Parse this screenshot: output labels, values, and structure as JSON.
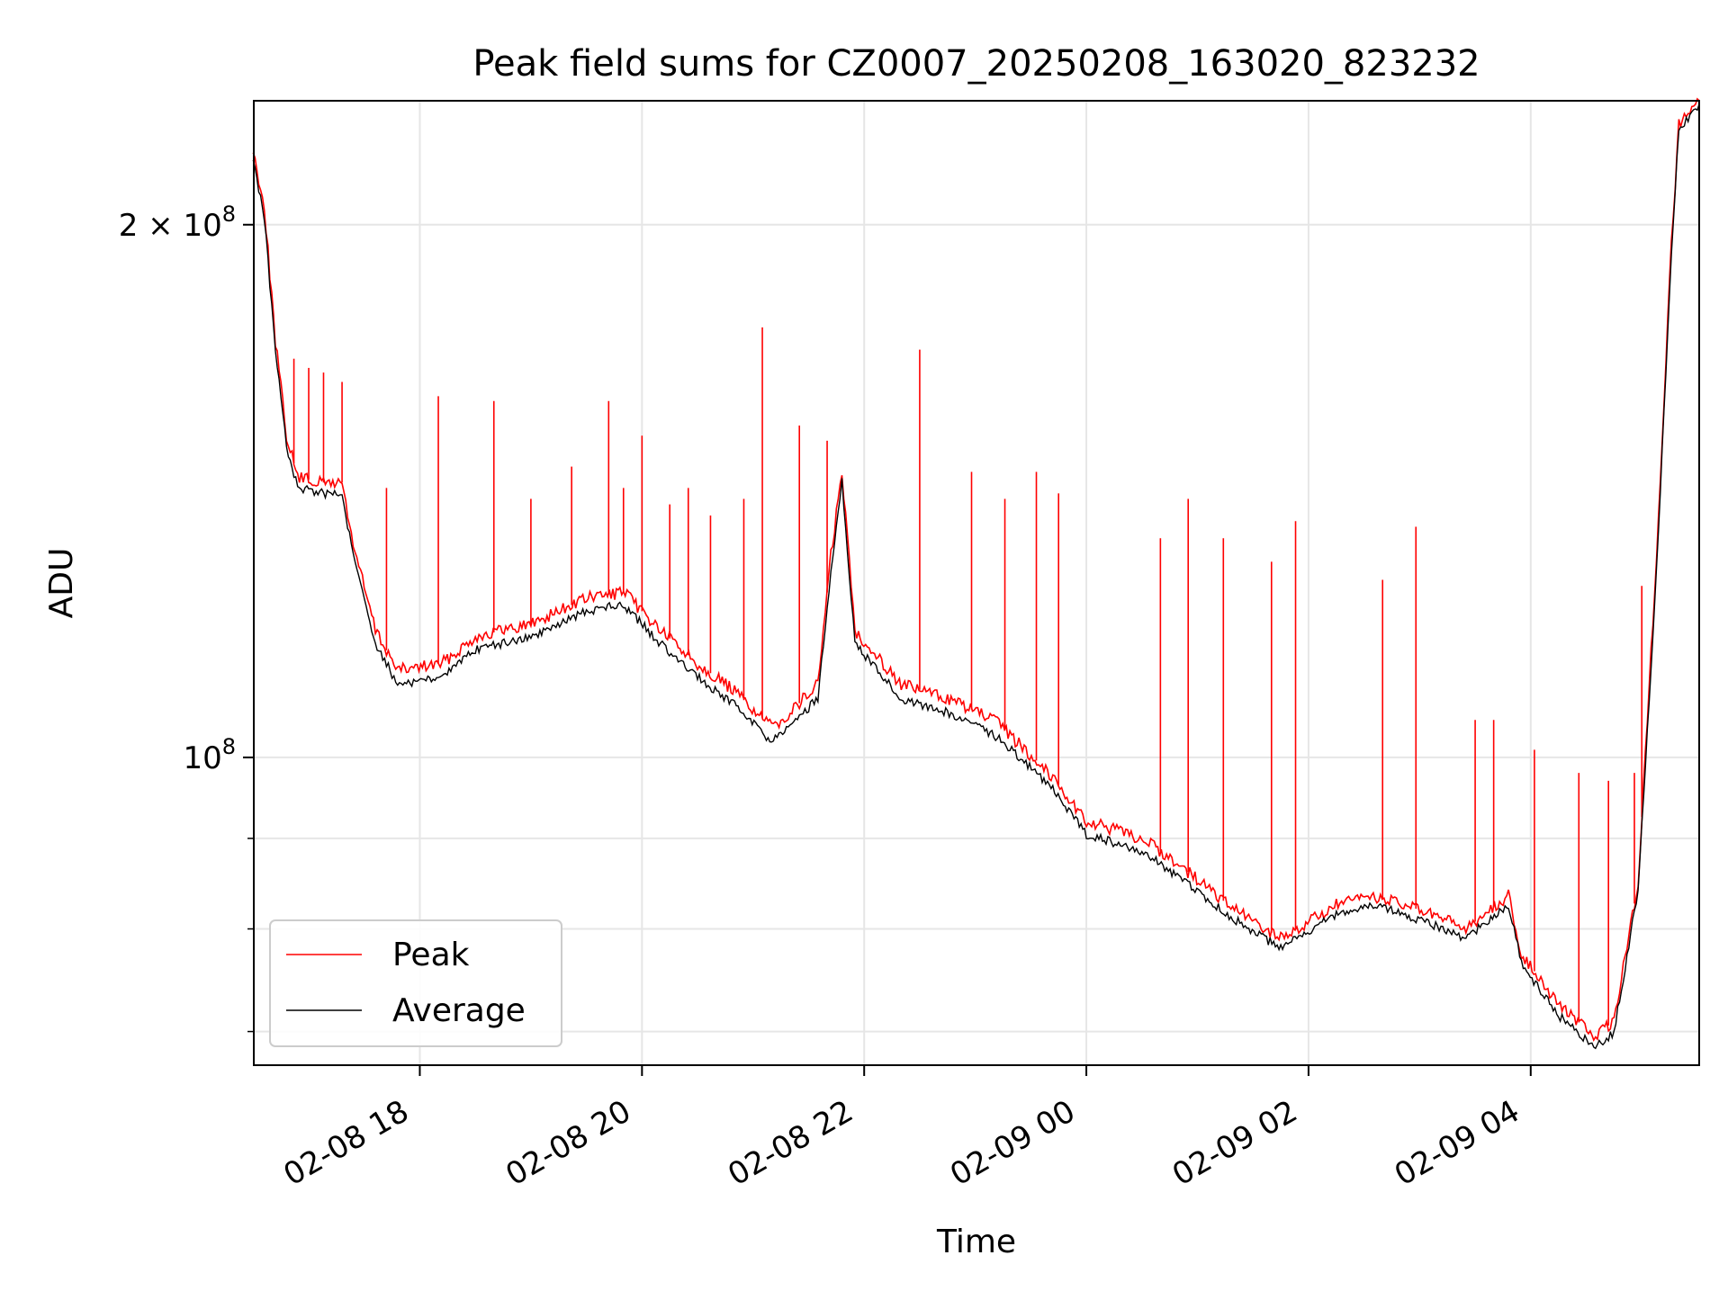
{
  "chart_data": {
    "type": "line",
    "title": "Peak field sums for CZ0007_20250208_163020_823232",
    "xlabel": "Time",
    "ylabel": "ADU",
    "x_start": "2025-02-08T16:30:20",
    "x_end": "2025-02-09T05:31:00",
    "xlim": [
      "2025-02-08T16:30:20",
      "2025-02-09T05:31:00"
    ],
    "ylim": [
      67000000,
      235000000
    ],
    "yscale": "log",
    "grid": true,
    "legend_position": "lower-left",
    "x_ticks": [
      {
        "value": "2025-02-08T18:00",
        "label": "02-08 18"
      },
      {
        "value": "2025-02-08T20:00",
        "label": "02-08 20"
      },
      {
        "value": "2025-02-08T22:00",
        "label": "02-08 22"
      },
      {
        "value": "2025-02-09T00:00",
        "label": "02-09 00"
      },
      {
        "value": "2025-02-09T02:00",
        "label": "02-09 02"
      },
      {
        "value": "2025-02-09T04:00",
        "label": "02-09 04"
      }
    ],
    "y_major_ticks": [
      {
        "value": 100000000,
        "base": "10",
        "exp": "8",
        "coef": ""
      },
      {
        "value": 200000000,
        "base": "10",
        "exp": "8",
        "coef": "2 × "
      }
    ],
    "y_minor_ticks": [
      70000000,
      80000000,
      90000000
    ],
    "series": [
      {
        "name": "Peak",
        "color": "#ff0000",
        "points": [
          [
            "2025-02-08T16:30",
            220000000.0
          ],
          [
            "2025-02-08T16:36",
            205000000.0
          ],
          [
            "2025-02-08T16:42",
            172000000.0
          ],
          [
            "2025-02-08T16:48",
            152000000.0
          ],
          [
            "2025-02-08T16:54",
            144000000.0
          ],
          [
            "2025-02-08T17:06",
            143000000.0
          ],
          [
            "2025-02-08T17:18",
            143000000.0
          ],
          [
            "2025-02-08T17:24",
            132000000.0
          ],
          [
            "2025-02-08T17:36",
            118000000.0
          ],
          [
            "2025-02-08T17:48",
            112000000.0
          ],
          [
            "2025-02-08T18:12",
            113000000.0
          ],
          [
            "2025-02-08T18:30",
            117000000.0
          ],
          [
            "2025-02-08T19:00",
            119000000.0
          ],
          [
            "2025-02-08T19:30",
            123000000.0
          ],
          [
            "2025-02-08T19:50",
            124000000.0
          ],
          [
            "2025-02-08T20:10",
            118000000.0
          ],
          [
            "2025-02-08T20:30",
            113000000.0
          ],
          [
            "2025-02-08T20:50",
            109000000.0
          ],
          [
            "2025-02-08T21:10",
            104000000.0
          ],
          [
            "2025-02-08T21:20",
            106000000.0
          ],
          [
            "2025-02-08T21:35",
            110000000.0
          ],
          [
            "2025-02-08T21:42",
            130000000.0
          ],
          [
            "2025-02-08T21:48",
            145000000.0
          ],
          [
            "2025-02-08T21:55",
            118000000.0
          ],
          [
            "2025-02-08T22:20",
            110000000.0
          ],
          [
            "2025-02-08T22:45",
            108000000.0
          ],
          [
            "2025-02-08T23:10",
            105000000.0
          ],
          [
            "2025-02-08T23:40",
            98000000.0
          ],
          [
            "2025-02-09T00:00",
            92000000.0
          ],
          [
            "2025-02-09T00:30",
            90000000.0
          ],
          [
            "2025-02-09T00:50",
            87000000.0
          ],
          [
            "2025-02-09T01:20",
            82000000.0
          ],
          [
            "2025-02-09T01:45",
            79000000.0
          ],
          [
            "2025-02-09T02:15",
            82500000.0
          ],
          [
            "2025-02-09T02:35",
            83500000.0
          ],
          [
            "2025-02-09T03:00",
            82000000.0
          ],
          [
            "2025-02-09T03:25",
            80000000.0
          ],
          [
            "2025-02-09T03:48",
            83500000.0
          ],
          [
            "2025-02-09T03:55",
            77500000.0
          ],
          [
            "2025-02-09T04:15",
            72500000.0
          ],
          [
            "2025-02-09T04:35",
            69500000.0
          ],
          [
            "2025-02-09T04:45",
            71000000.0
          ],
          [
            "2025-02-09T04:58",
            85000000.0
          ],
          [
            "2025-02-09T05:08",
            130000000.0
          ],
          [
            "2025-02-09T05:16",
            195000000.0
          ],
          [
            "2025-02-09T05:20",
            228000000.0
          ],
          [
            "2025-02-09T05:31",
            235000000.0
          ]
        ],
        "spikes": [
          [
            "2025-02-08T16:52",
            168000000.0
          ],
          [
            "2025-02-08T17:00",
            166000000.0
          ],
          [
            "2025-02-08T17:08",
            165000000.0
          ],
          [
            "2025-02-08T17:18",
            163000000.0
          ],
          [
            "2025-02-08T17:42",
            142000000.0
          ],
          [
            "2025-02-08T18:10",
            160000000.0
          ],
          [
            "2025-02-08T18:40",
            159000000.0
          ],
          [
            "2025-02-08T19:00",
            140000000.0
          ],
          [
            "2025-02-08T19:22",
            146000000.0
          ],
          [
            "2025-02-08T19:42",
            159000000.0
          ],
          [
            "2025-02-08T19:50",
            142000000.0
          ],
          [
            "2025-02-08T20:00",
            152000000.0
          ],
          [
            "2025-02-08T20:15",
            139000000.0
          ],
          [
            "2025-02-08T20:25",
            142000000.0
          ],
          [
            "2025-02-08T20:37",
            137000000.0
          ],
          [
            "2025-02-08T20:55",
            140000000.0
          ],
          [
            "2025-02-08T21:05",
            175000000.0
          ],
          [
            "2025-02-08T21:25",
            154000000.0
          ],
          [
            "2025-02-08T21:40",
            151000000.0
          ],
          [
            "2025-02-08T22:30",
            170000000.0
          ],
          [
            "2025-02-08T22:58",
            145000000.0
          ],
          [
            "2025-02-08T23:16",
            140000000.0
          ],
          [
            "2025-02-08T23:33",
            145000000.0
          ],
          [
            "2025-02-08T23:45",
            141000000.0
          ],
          [
            "2025-02-09T00:40",
            133000000.0
          ],
          [
            "2025-02-09T00:55",
            140000000.0
          ],
          [
            "2025-02-09T01:14",
            133000000.0
          ],
          [
            "2025-02-09T01:40",
            129000000.0
          ],
          [
            "2025-02-09T01:53",
            136000000.0
          ],
          [
            "2025-02-09T02:40",
            126000000.0
          ],
          [
            "2025-02-09T02:58",
            135000000.0
          ],
          [
            "2025-02-09T03:30",
            105000000.0
          ],
          [
            "2025-02-09T03:40",
            105000000.0
          ],
          [
            "2025-02-09T04:02",
            101000000.0
          ],
          [
            "2025-02-09T04:26",
            98000000.0
          ],
          [
            "2025-02-09T04:42",
            97000000.0
          ],
          [
            "2025-02-09T04:56",
            98000000.0
          ],
          [
            "2025-02-09T05:00",
            125000000.0
          ]
        ]
      },
      {
        "name": "Average",
        "color": "#000000",
        "points": [
          [
            "2025-02-08T16:30",
            218000000.0
          ],
          [
            "2025-02-08T16:36",
            202000000.0
          ],
          [
            "2025-02-08T16:42",
            170000000.0
          ],
          [
            "2025-02-08T16:48",
            150000000.0
          ],
          [
            "2025-02-08T16:54",
            142000000.0
          ],
          [
            "2025-02-08T17:06",
            141000000.0
          ],
          [
            "2025-02-08T17:18",
            141000000.0
          ],
          [
            "2025-02-08T17:24",
            130000000.0
          ],
          [
            "2025-02-08T17:36",
            116000000.0
          ],
          [
            "2025-02-08T17:48",
            110000000.0
          ],
          [
            "2025-02-08T18:12",
            111000000.0
          ],
          [
            "2025-02-08T18:30",
            115000000.0
          ],
          [
            "2025-02-08T19:00",
            117000000.0
          ],
          [
            "2025-02-08T19:30",
            121000000.0
          ],
          [
            "2025-02-08T19:50",
            122000000.0
          ],
          [
            "2025-02-08T20:10",
            116000000.0
          ],
          [
            "2025-02-08T20:30",
            111000000.0
          ],
          [
            "2025-02-08T20:50",
            107000000.0
          ],
          [
            "2025-02-08T21:10",
            102000000.0
          ],
          [
            "2025-02-08T21:20",
            104000000.0
          ],
          [
            "2025-02-08T21:35",
            108000000.0
          ],
          [
            "2025-02-08T21:42",
            127000000.0
          ],
          [
            "2025-02-08T21:48",
            143000000.0
          ],
          [
            "2025-02-08T21:55",
            116000000.0
          ],
          [
            "2025-02-08T22:20",
            108000000.0
          ],
          [
            "2025-02-08T22:45",
            106000000.0
          ],
          [
            "2025-02-08T23:10",
            103000000.0
          ],
          [
            "2025-02-08T23:40",
            96500000.0
          ],
          [
            "2025-02-09T00:00",
            90500000.0
          ],
          [
            "2025-02-09T00:30",
            88500000.0
          ],
          [
            "2025-02-09T00:50",
            85500000.0
          ],
          [
            "2025-02-09T01:20",
            81000000.0
          ],
          [
            "2025-02-09T01:45",
            78000000.0
          ],
          [
            "2025-02-09T02:15",
            81500000.0
          ],
          [
            "2025-02-09T02:35",
            82500000.0
          ],
          [
            "2025-02-09T03:00",
            81000000.0
          ],
          [
            "2025-02-09T03:25",
            79000000.0
          ],
          [
            "2025-02-09T03:48",
            82500000.0
          ],
          [
            "2025-02-09T03:55",
            76500000.0
          ],
          [
            "2025-02-09T04:15",
            71500000.0
          ],
          [
            "2025-02-09T04:35",
            68500000.0
          ],
          [
            "2025-02-09T04:45",
            70000000.0
          ],
          [
            "2025-02-09T04:58",
            84000000.0
          ],
          [
            "2025-02-09T05:08",
            128000000.0
          ],
          [
            "2025-02-09T05:16",
            193000000.0
          ],
          [
            "2025-02-09T05:20",
            226000000.0
          ],
          [
            "2025-02-09T05:31",
            234000000.0
          ]
        ]
      }
    ]
  }
}
